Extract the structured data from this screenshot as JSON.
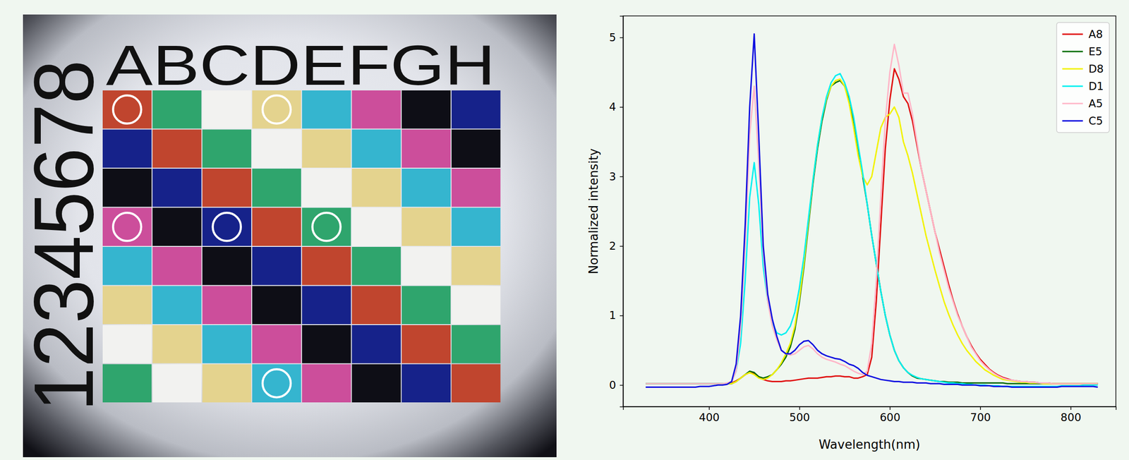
{
  "chart_data": {
    "type": "line",
    "xlabel": "Wavelength(nm)",
    "ylabel": "Normalized intensity",
    "xlim": [
      305,
      850
    ],
    "ylim": [
      -0.31,
      5.31
    ],
    "xticks": [
      400,
      500,
      600,
      700,
      800
    ],
    "yticks": [
      0,
      1,
      2,
      3,
      4,
      5
    ],
    "legend": "upper right",
    "x": [
      330,
      335,
      340,
      345,
      350,
      355,
      360,
      365,
      370,
      375,
      380,
      385,
      390,
      395,
      400,
      405,
      410,
      415,
      420,
      425,
      430,
      435,
      440,
      445,
      450,
      455,
      460,
      465,
      470,
      475,
      480,
      485,
      490,
      495,
      500,
      505,
      510,
      515,
      520,
      525,
      530,
      535,
      540,
      545,
      550,
      555,
      560,
      565,
      570,
      575,
      580,
      585,
      590,
      595,
      600,
      605,
      610,
      615,
      620,
      625,
      630,
      635,
      640,
      645,
      650,
      655,
      660,
      665,
      670,
      675,
      680,
      685,
      690,
      695,
      700,
      705,
      710,
      715,
      720,
      725,
      730,
      735,
      740,
      745,
      750,
      755,
      760,
      765,
      770,
      775,
      780,
      785,
      790,
      795,
      800,
      805,
      810,
      815,
      820,
      825,
      830
    ],
    "series": [
      {
        "name": "A8",
        "color": "#e01010",
        "values": [
          0.02,
          0.02,
          0.02,
          0.02,
          0.02,
          0.02,
          0.02,
          0.02,
          0.02,
          0.02,
          0.02,
          0.02,
          0.02,
          0.02,
          0.02,
          0.02,
          0.02,
          0.02,
          0.02,
          0.03,
          0.06,
          0.1,
          0.15,
          0.18,
          0.17,
          0.12,
          0.08,
          0.06,
          0.05,
          0.05,
          0.05,
          0.06,
          0.06,
          0.07,
          0.08,
          0.09,
          0.1,
          0.1,
          0.1,
          0.11,
          0.12,
          0.12,
          0.13,
          0.13,
          0.12,
          0.12,
          0.1,
          0.1,
          0.12,
          0.15,
          0.4,
          1.2,
          2.3,
          3.4,
          4.1,
          4.55,
          4.4,
          4.15,
          4.05,
          3.8,
          3.45,
          3.1,
          2.8,
          2.5,
          2.2,
          1.95,
          1.7,
          1.45,
          1.22,
          1.02,
          0.85,
          0.7,
          0.57,
          0.46,
          0.37,
          0.3,
          0.23,
          0.18,
          0.14,
          0.11,
          0.09,
          0.07,
          0.06,
          0.05,
          0.05,
          0.04,
          0.04,
          0.03,
          0.03,
          0.03,
          0.02,
          0.02,
          0.02,
          0.02,
          0.02,
          0.02,
          0.02,
          0.02,
          0.02,
          0.02,
          0.02
        ]
      },
      {
        "name": "E5",
        "color": "#0a6e0a",
        "values": [
          0.02,
          0.02,
          0.02,
          0.02,
          0.02,
          0.02,
          0.02,
          0.02,
          0.02,
          0.02,
          0.02,
          0.02,
          0.02,
          0.02,
          0.02,
          0.02,
          0.02,
          0.02,
          0.02,
          0.02,
          0.05,
          0.1,
          0.15,
          0.2,
          0.18,
          0.12,
          0.1,
          0.12,
          0.15,
          0.22,
          0.3,
          0.4,
          0.55,
          0.8,
          1.2,
          1.7,
          2.3,
          2.9,
          3.4,
          3.8,
          4.1,
          4.3,
          4.35,
          4.38,
          4.3,
          4.1,
          3.8,
          3.4,
          3.0,
          2.6,
          2.15,
          1.75,
          1.35,
          1.0,
          0.72,
          0.5,
          0.35,
          0.25,
          0.18,
          0.13,
          0.1,
          0.09,
          0.08,
          0.07,
          0.06,
          0.05,
          0.05,
          0.04,
          0.04,
          0.04,
          0.03,
          0.03,
          0.03,
          0.03,
          0.03,
          0.03,
          0.03,
          0.03,
          0.03,
          0.03,
          0.02,
          0.02,
          0.02,
          0.02,
          0.02,
          0.02,
          0.02,
          0.02,
          0.02,
          0.02,
          0.02,
          0.02,
          0.02,
          0.02,
          0.02,
          0.02,
          0.02,
          0.02,
          0.02,
          0.02,
          0.02
        ]
      },
      {
        "name": "D8",
        "color": "#f2f200",
        "values": [
          0.02,
          0.02,
          0.02,
          0.02,
          0.02,
          0.02,
          0.02,
          0.02,
          0.02,
          0.02,
          0.02,
          0.02,
          0.02,
          0.02,
          0.02,
          0.02,
          0.02,
          0.02,
          0.02,
          0.02,
          0.05,
          0.1,
          0.15,
          0.18,
          0.15,
          0.1,
          0.08,
          0.1,
          0.15,
          0.22,
          0.32,
          0.45,
          0.6,
          0.85,
          1.25,
          1.75,
          2.35,
          2.95,
          3.45,
          3.85,
          4.12,
          4.3,
          4.38,
          4.4,
          4.3,
          4.05,
          3.7,
          3.3,
          3.0,
          2.88,
          3.0,
          3.35,
          3.7,
          3.85,
          3.9,
          4.0,
          3.85,
          3.5,
          3.3,
          3.05,
          2.75,
          2.45,
          2.15,
          1.9,
          1.65,
          1.42,
          1.2,
          1.02,
          0.86,
          0.72,
          0.6,
          0.5,
          0.42,
          0.34,
          0.28,
          0.22,
          0.18,
          0.14,
          0.11,
          0.08,
          0.07,
          0.06,
          0.05,
          0.04,
          0.04,
          0.03,
          0.03,
          0.03,
          0.02,
          0.02,
          0.02,
          0.02,
          0.02,
          0.02,
          0.02,
          0.02,
          0.02,
          0.02,
          0.02,
          0.02,
          0.02
        ]
      },
      {
        "name": "D1",
        "color": "#00f0f0",
        "values": [
          0.02,
          0.02,
          0.02,
          0.02,
          0.02,
          0.02,
          0.02,
          0.02,
          0.02,
          0.02,
          0.02,
          0.02,
          0.02,
          0.02,
          0.02,
          0.02,
          0.02,
          0.02,
          0.02,
          0.05,
          0.2,
          0.6,
          1.5,
          2.7,
          3.2,
          2.6,
          1.7,
          1.2,
          0.9,
          0.75,
          0.72,
          0.75,
          0.85,
          1.05,
          1.4,
          1.85,
          2.4,
          2.95,
          3.45,
          3.85,
          4.15,
          4.35,
          4.45,
          4.48,
          4.35,
          4.15,
          3.85,
          3.45,
          3.05,
          2.6,
          2.15,
          1.75,
          1.35,
          1.0,
          0.72,
          0.5,
          0.35,
          0.25,
          0.18,
          0.14,
          0.11,
          0.09,
          0.08,
          0.07,
          0.06,
          0.05,
          0.04,
          0.03,
          0.03,
          0.02,
          0.02,
          0.01,
          0.01,
          0,
          0,
          0,
          -0.01,
          -0.01,
          -0.01,
          -0.02,
          -0.02,
          -0.02,
          -0.02,
          -0.02,
          -0.02,
          -0.02,
          -0.02,
          -0.02,
          -0.02,
          -0.02,
          -0.02,
          -0.02,
          -0.01,
          -0.01,
          -0.01,
          -0.01,
          -0.01,
          0,
          0,
          0,
          0
        ]
      },
      {
        "name": "A5",
        "color": "#ffb6c8",
        "values": [
          0.02,
          0.02,
          0.02,
          0.02,
          0.02,
          0.02,
          0.02,
          0.02,
          0.02,
          0.02,
          0.02,
          0.02,
          0.02,
          0.02,
          0.02,
          0.02,
          0.02,
          0.02,
          0.03,
          0.05,
          0.2,
          0.8,
          2.0,
          3.6,
          4.3,
          3.2,
          1.9,
          1.2,
          0.85,
          0.65,
          0.5,
          0.45,
          0.43,
          0.45,
          0.5,
          0.55,
          0.57,
          0.52,
          0.45,
          0.4,
          0.37,
          0.35,
          0.33,
          0.3,
          0.28,
          0.24,
          0.2,
          0.17,
          0.15,
          0.2,
          0.6,
          1.5,
          2.7,
          3.8,
          4.5,
          4.9,
          4.6,
          4.2,
          4.2,
          3.9,
          3.5,
          3.1,
          2.8,
          2.5,
          2.2,
          1.9,
          1.65,
          1.4,
          1.2,
          1.0,
          0.85,
          0.7,
          0.55,
          0.45,
          0.35,
          0.28,
          0.22,
          0.17,
          0.13,
          0.1,
          0.08,
          0.07,
          0.06,
          0.05,
          0.05,
          0.04,
          0.04,
          0.03,
          0.03,
          0.03,
          0.02,
          0.02,
          0.02,
          0.02,
          0.02,
          0.02,
          0.02,
          0.02,
          0.02,
          0.02,
          0.02
        ]
      },
      {
        "name": "C5",
        "color": "#1010e0",
        "values": [
          -0.03,
          -0.03,
          -0.03,
          -0.03,
          -0.03,
          -0.03,
          -0.03,
          -0.03,
          -0.03,
          -0.03,
          -0.03,
          -0.03,
          -0.02,
          -0.02,
          -0.02,
          -0.01,
          0,
          0,
          0.01,
          0.05,
          0.3,
          1.0,
          2.3,
          4.0,
          5.05,
          3.6,
          2.0,
          1.3,
          0.95,
          0.7,
          0.5,
          0.45,
          0.45,
          0.5,
          0.58,
          0.63,
          0.64,
          0.58,
          0.5,
          0.45,
          0.42,
          0.4,
          0.38,
          0.37,
          0.34,
          0.3,
          0.28,
          0.24,
          0.18,
          0.14,
          0.12,
          0.1,
          0.08,
          0.07,
          0.06,
          0.05,
          0.05,
          0.04,
          0.04,
          0.04,
          0.03,
          0.03,
          0.03,
          0.02,
          0.02,
          0.02,
          0.01,
          0.01,
          0.01,
          0.01,
          0,
          0,
          0,
          0,
          -0.01,
          -0.01,
          -0.01,
          -0.02,
          -0.02,
          -0.02,
          -0.02,
          -0.03,
          -0.03,
          -0.03,
          -0.03,
          -0.03,
          -0.03,
          -0.03,
          -0.03,
          -0.03,
          -0.03,
          -0.03,
          -0.02,
          -0.02,
          -0.02,
          -0.02,
          -0.02,
          -0.02,
          -0.02,
          -0.02,
          -0.03
        ]
      }
    ]
  },
  "panel_image": {
    "column_labels": "ABCDEFGH",
    "row_labels": "12345678",
    "cells": [
      [
        "#c0452e",
        "#2fa56d",
        "#f2f2f0",
        "#e4d38e",
        "#35b5cf",
        "#cc4e9b",
        "#0e0e16",
        "#16228a"
      ],
      [
        "#16228a",
        "#c0452e",
        "#2fa56d",
        "#f2f2f0",
        "#e4d38e",
        "#35b5cf",
        "#cc4e9b",
        "#0e0e16"
      ],
      [
        "#0e0e16",
        "#16228a",
        "#c0452e",
        "#2fa56d",
        "#f2f2f0",
        "#e4d38e",
        "#35b5cf",
        "#cc4e9b"
      ],
      [
        "#cc4e9b",
        "#0e0e16",
        "#16228a",
        "#c0452e",
        "#2fa56d",
        "#f2f2f0",
        "#e4d38e",
        "#35b5cf"
      ],
      [
        "#35b5cf",
        "#cc4e9b",
        "#0e0e16",
        "#16228a",
        "#c0452e",
        "#2fa56d",
        "#f2f2f0",
        "#e4d38e"
      ],
      [
        "#e4d38e",
        "#35b5cf",
        "#cc4e9b",
        "#0e0e16",
        "#16228a",
        "#c0452e",
        "#2fa56d",
        "#f2f2f0"
      ],
      [
        "#f2f2f0",
        "#e4d38e",
        "#35b5cf",
        "#cc4e9b",
        "#0e0e16",
        "#16228a",
        "#c0452e",
        "#2fa56d"
      ],
      [
        "#2fa56d",
        "#f2f2f0",
        "#e4d38e",
        "#35b5cf",
        "#cc4e9b",
        "#0e0e16",
        "#16228a",
        "#c0452e"
      ]
    ]
  }
}
